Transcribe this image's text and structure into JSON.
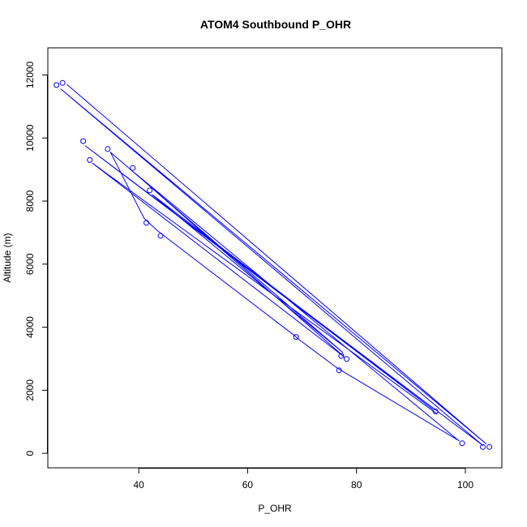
{
  "chart_data": {
    "type": "scatter",
    "title": "ATOM4 Southbound P_OHR",
    "xlabel": "P_OHR",
    "ylabel": "Altitude (m)",
    "xlim": [
      23.3,
      106.7
    ],
    "ylim": [
      -460,
      12860
    ],
    "x_ticks": [
      40,
      60,
      80,
      100
    ],
    "y_ticks": [
      0,
      2000,
      4000,
      6000,
      8000,
      10000,
      12000
    ],
    "grid": false,
    "colors": {
      "series": "#0000ff",
      "frame": "#000000"
    },
    "series": [
      {
        "points": [
          {
            "x": 24.9,
            "y": 11680
          },
          {
            "x": 26.0,
            "y": 11750
          },
          {
            "x": 29.8,
            "y": 9900
          },
          {
            "x": 31.0,
            "y": 9300
          },
          {
            "x": 34.3,
            "y": 9650
          },
          {
            "x": 38.9,
            "y": 9050
          },
          {
            "x": 42.0,
            "y": 8340
          },
          {
            "x": 41.4,
            "y": 7310
          },
          {
            "x": 44.0,
            "y": 6900
          },
          {
            "x": 68.9,
            "y": 3690
          },
          {
            "x": 77.2,
            "y": 3090
          },
          {
            "x": 78.2,
            "y": 2990
          },
          {
            "x": 76.8,
            "y": 2630
          },
          {
            "x": 94.5,
            "y": 1330
          },
          {
            "x": 99.4,
            "y": 320
          },
          {
            "x": 103.2,
            "y": 200
          },
          {
            "x": 104.4,
            "y": 200
          }
        ],
        "path": [
          {
            "x": 26.8,
            "y": 11700
          },
          {
            "x": 103.8,
            "y": 300
          },
          {
            "x": 25.7,
            "y": 11550
          },
          {
            "x": 103.2,
            "y": 250
          },
          {
            "x": 30.2,
            "y": 9750
          },
          {
            "x": 94.0,
            "y": 1400
          },
          {
            "x": 42.5,
            "y": 8200
          },
          {
            "x": 77.5,
            "y": 3200
          },
          {
            "x": 34.8,
            "y": 9550
          },
          {
            "x": 41.0,
            "y": 7450
          },
          {
            "x": 43.5,
            "y": 7050
          },
          {
            "x": 68.5,
            "y": 3750
          },
          {
            "x": 69.5,
            "y": 3600
          },
          {
            "x": 76.5,
            "y": 2700
          },
          {
            "x": 98.8,
            "y": 400
          },
          {
            "x": 39.2,
            "y": 8900
          },
          {
            "x": 77.8,
            "y": 3050
          },
          {
            "x": 31.5,
            "y": 9200
          },
          {
            "x": 94.8,
            "y": 1250
          }
        ]
      }
    ]
  }
}
